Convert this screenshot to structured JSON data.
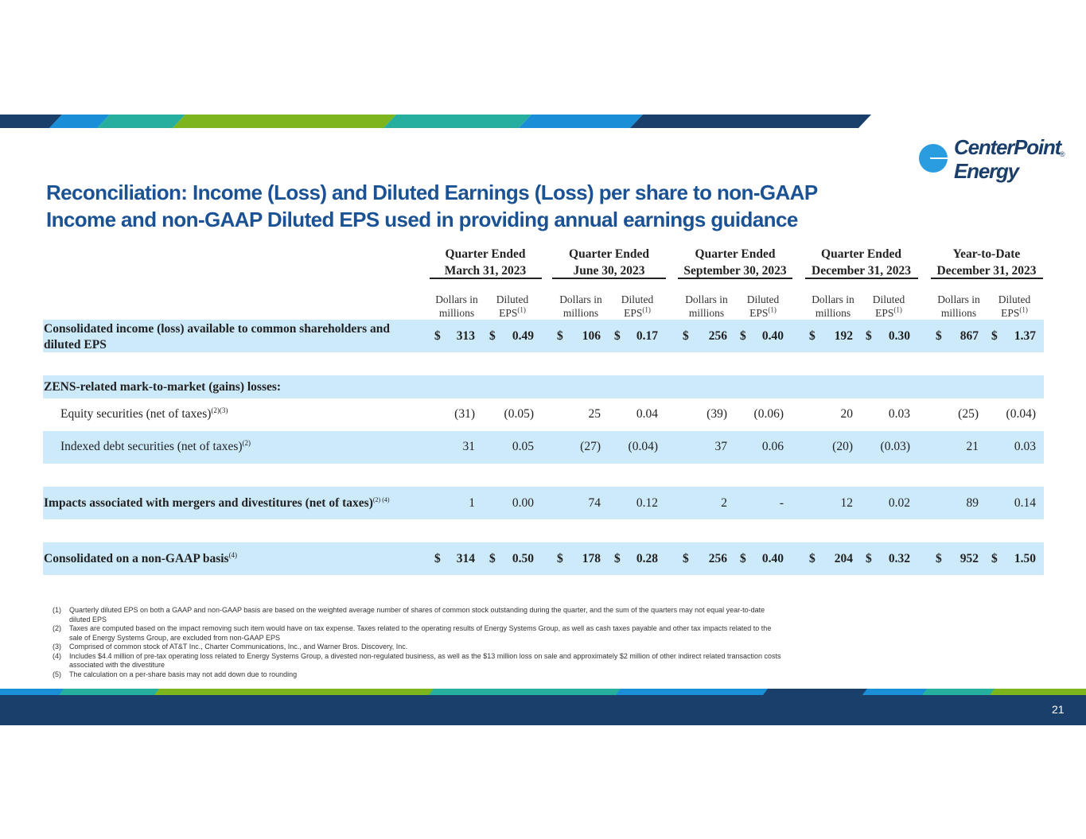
{
  "brand": {
    "logo_line1": "CenterPoint",
    "logo_line2": "Energy",
    "logo_mark": "®"
  },
  "title": {
    "line1": "Reconciliation: Income (Loss) and Diluted Earnings (Loss) per share to non-GAAP",
    "line2": "Income and non-GAAP Diluted EPS used in providing annual earnings guidance"
  },
  "periods": [
    {
      "line1": "Quarter Ended",
      "line2": "March 31, 2023"
    },
    {
      "line1": "Quarter Ended",
      "line2": "June 30, 2023"
    },
    {
      "line1": "Quarter Ended",
      "line2": "September 30, 2023"
    },
    {
      "line1": "Quarter Ended",
      "line2": "December 31, 2023"
    },
    {
      "line1": "Year-to-Date",
      "line2": "December 31, 2023"
    }
  ],
  "subheaders": {
    "dollars_line1": "Dollars in",
    "dollars_line2": "millions",
    "eps_line1": "Diluted",
    "eps_line2": "EPS",
    "eps_sup": "(1)"
  },
  "rows": {
    "consolidated": {
      "label_line1": "Consolidated income (loss) available to common shareholders and",
      "label_line2": "diluted EPS",
      "currency": "$",
      "values": [
        "313",
        "0.49",
        "106",
        "0.17",
        "256",
        "0.40",
        "192",
        "0.30",
        "867",
        "1.37"
      ]
    },
    "zens_header": {
      "label": "ZENS-related mark-to-market (gains) losses:"
    },
    "equity": {
      "label": "Equity securities (net of taxes)",
      "sup": "(2)(3)",
      "values": [
        "(31)",
        "(0.05)",
        "25",
        "0.04",
        "(39)",
        "(0.06)",
        "20",
        "0.03",
        "(25)",
        "(0.04)"
      ]
    },
    "indexed": {
      "label": "Indexed debt securities (net of taxes)",
      "sup": "(2)",
      "values": [
        "31",
        "0.05",
        "(27)",
        "(0.04)",
        "37",
        "0.06",
        "(20)",
        "(0.03)",
        "21",
        "0.03"
      ]
    },
    "mergers": {
      "label": "Impacts associated with mergers and divestitures (net of taxes)",
      "sup": "(2) (4)",
      "values": [
        "1",
        "0.00",
        "74",
        "0.12",
        "2",
        "-",
        "12",
        "0.02",
        "89",
        "0.14"
      ]
    },
    "nongaap": {
      "label": "Consolidated on a non-GAAP basis",
      "sup": "(4)",
      "currency": "$",
      "values": [
        "314",
        "0.50",
        "178",
        "0.28",
        "256",
        "0.40",
        "204",
        "0.32",
        "952",
        "1.50"
      ]
    }
  },
  "footnotes": [
    {
      "tag": "(1)",
      "text": "Quarterly diluted EPS on both a GAAP and non-GAAP basis are based on the weighted average number of shares of common stock outstanding during the quarter, and the sum of the quarters may not equal year-to-date diluted EPS"
    },
    {
      "tag": "(2)",
      "text": "Taxes are computed based on the impact removing such item would have on tax expense. Taxes related to the operating results of Energy Systems Group, as well as cash taxes payable and other tax impacts related to the sale of Energy Systems Group, are excluded from non-GAAP EPS"
    },
    {
      "tag": "(3)",
      "text": "Comprised of common stock of AT&T Inc., Charter Communications, Inc., and Warner Bros. Discovery, Inc."
    },
    {
      "tag": "(4)",
      "text": "Includes $4.4 million of pre-tax operating loss related to Energy Systems Group, a divested non-regulated business, as well as the $13 million loss on sale and approximately $2 million of other indirect related transaction costs associated with the divestiture"
    },
    {
      "tag": "(5)",
      "text": "The calculation on a per-share basis may not add down due to rounding"
    }
  ],
  "page_number": "21",
  "colors": {
    "navy": "#1b3f6b",
    "blue": "#1a8fd8",
    "teal": "#26ae9e",
    "green": "#7db51f",
    "title": "#1b5294",
    "row_fill": "#cdeafb"
  }
}
